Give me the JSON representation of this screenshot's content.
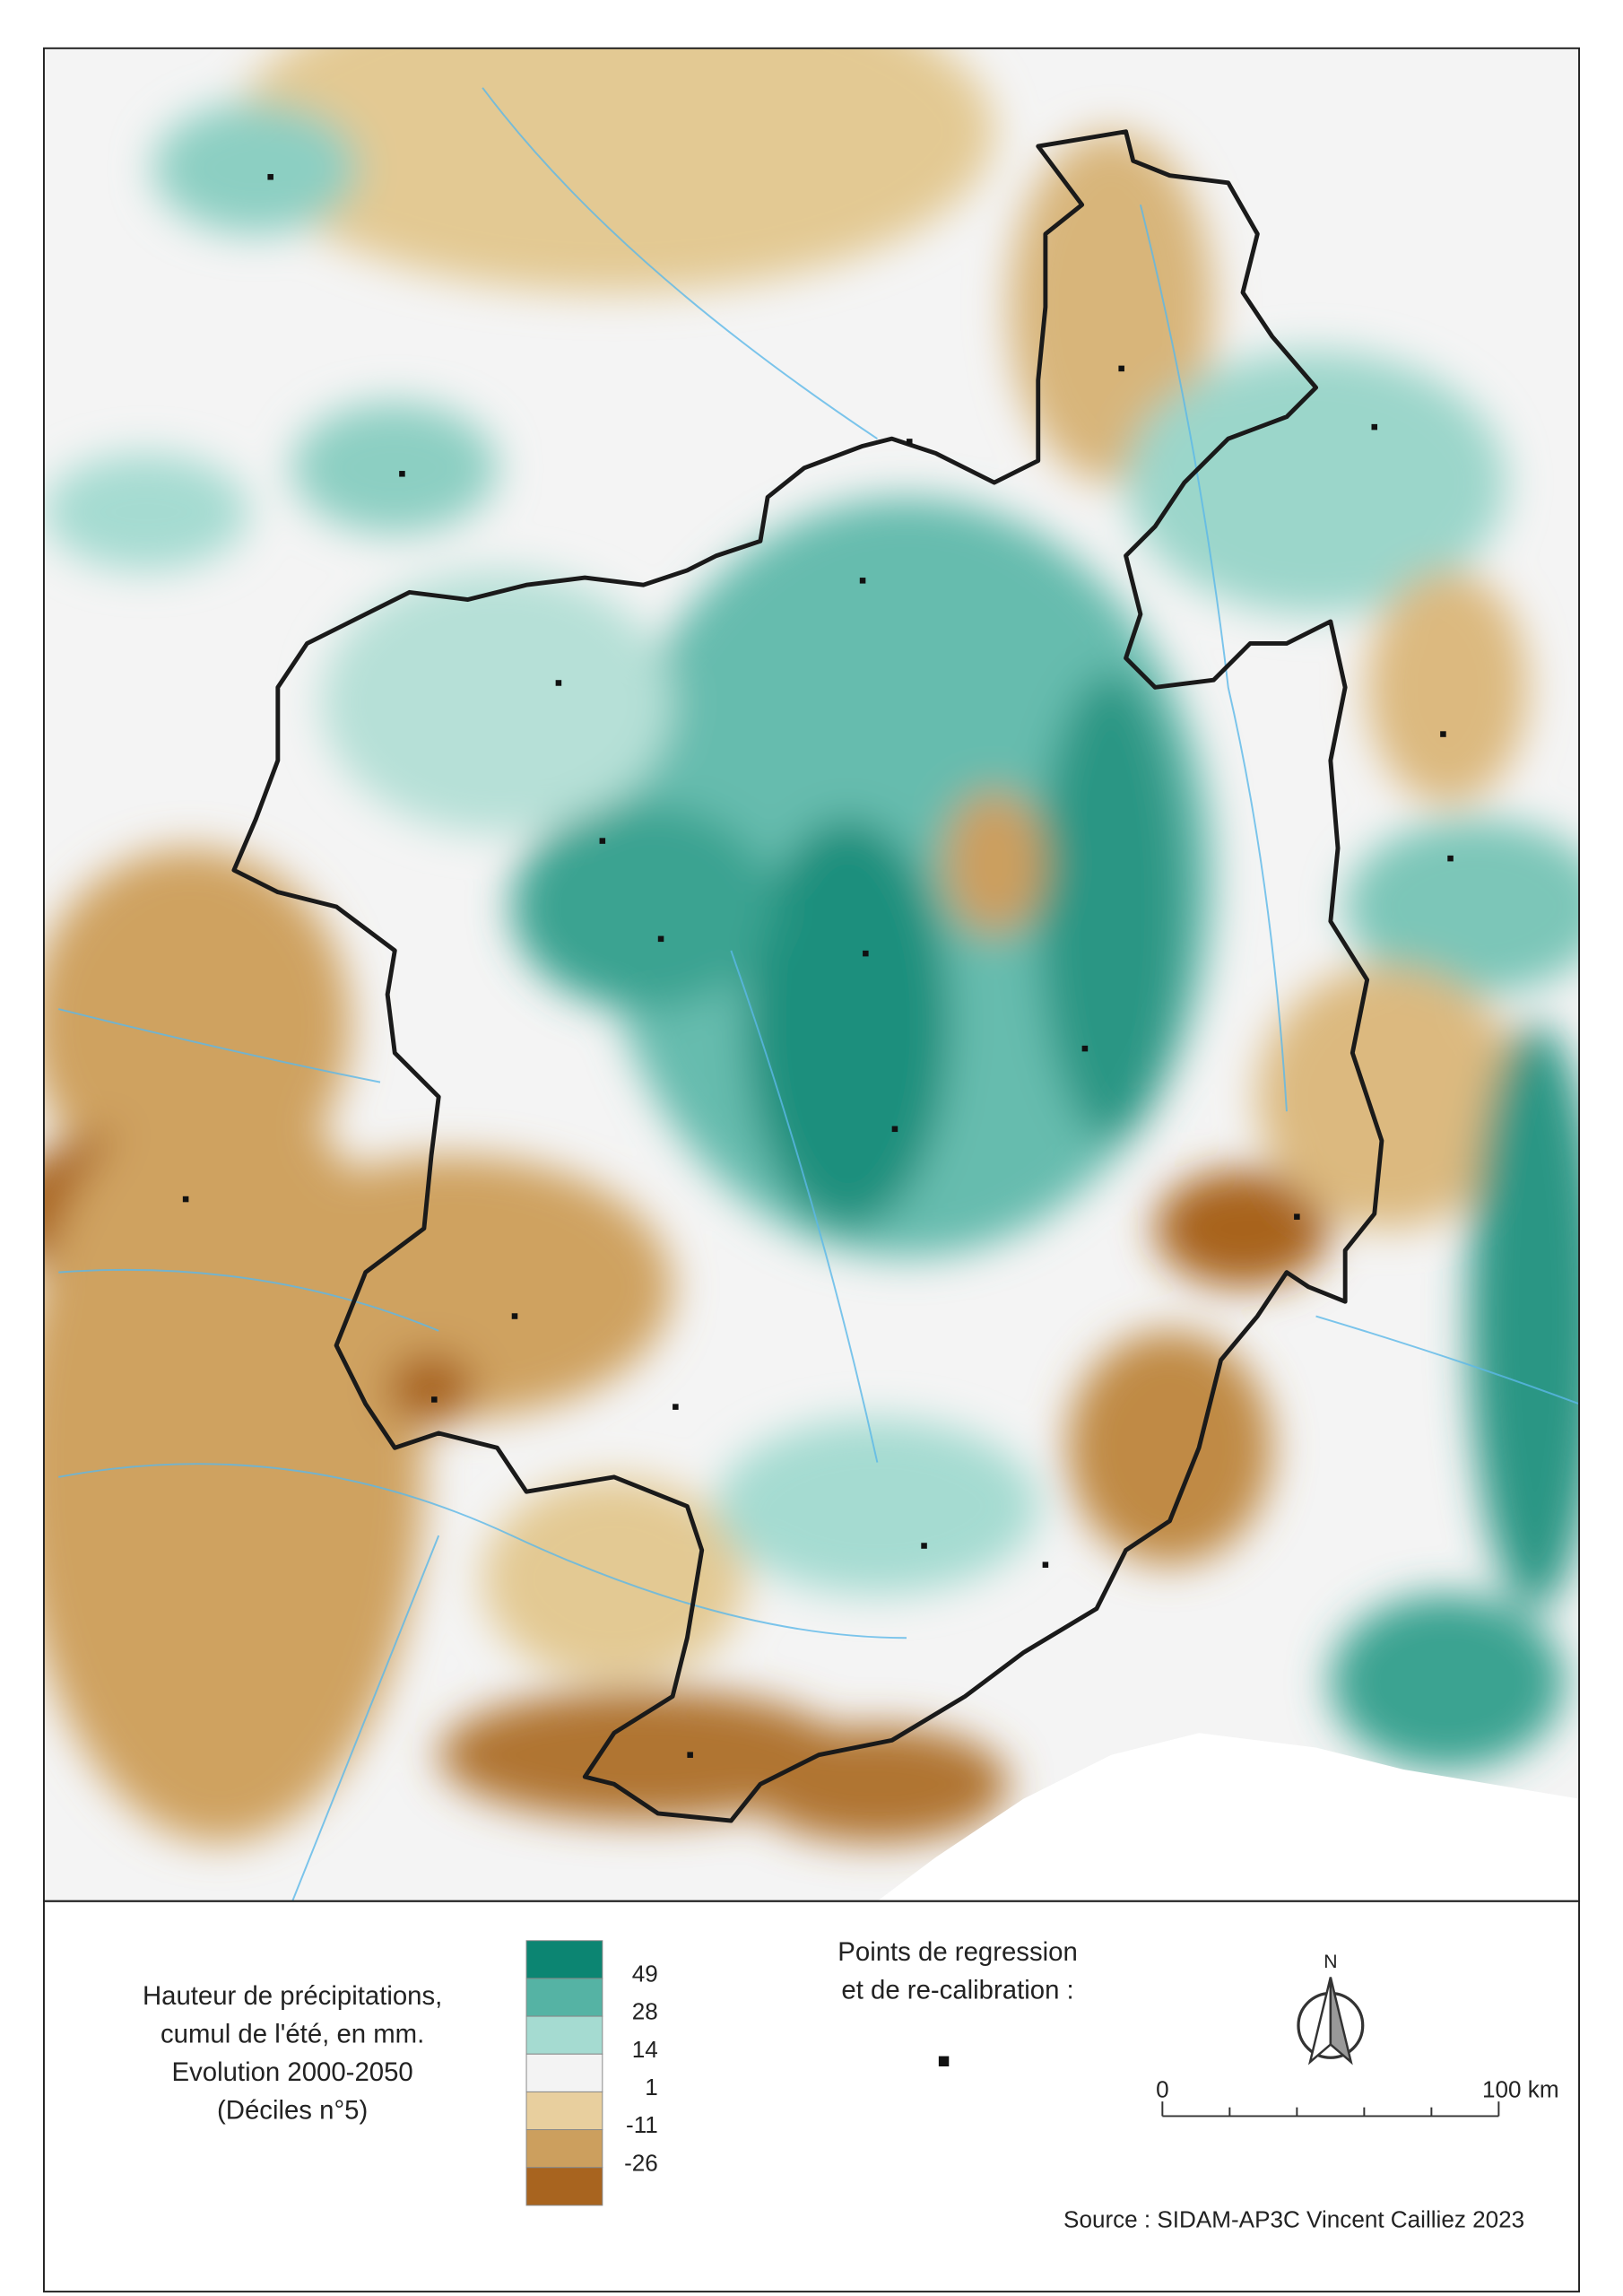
{
  "legend": {
    "title_lines": [
      "Hauteur de précipitations,",
      "cumul de l'été, en mm.",
      "Evolution 2000-2050",
      "(Déciles n°5)"
    ],
    "colors": [
      "#0c8572",
      "#55b3a4",
      "#a5dbd1",
      "#f3f3f3",
      "#e8cf9e",
      "#cc9f5e",
      "#a8641f"
    ],
    "breaks": [
      49,
      28,
      14,
      1,
      -11,
      -26
    ]
  },
  "points": {
    "title_lines": [
      "Points de regression",
      "et de re-calibration :"
    ]
  },
  "north": "N",
  "scale": {
    "start": "0",
    "end": "100 km"
  },
  "source": "Source : SIDAM-AP3C Vincent Cailliez 2023"
}
